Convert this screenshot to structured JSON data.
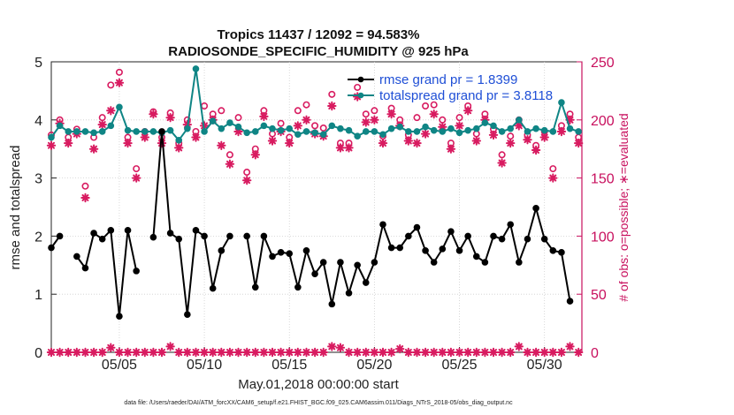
{
  "chart_data": {
    "type": "line",
    "title_line1": "Tropics 11437 / 12092 = 94.583%",
    "title_line2": "RADIOSONDE_SPECIFIC_HUMIDITY @ 925 hPa",
    "xlabel": "May.01,2018 00:00:00 start",
    "ylabel_left": "rmse and totalspread",
    "ylabel_right": "# of obs: o=possible; ∗=evaluated",
    "footer": "data file: /Users/raeder/DAI/ATM_forcXX/CAM6_setup/f.e21.FHIST_BGC.f09_025.CAM6assim.011/Diags_NTrS_2018-05/obs_diag_output.nc",
    "x_range": [
      1,
      32.2
    ],
    "ylim_left": [
      0,
      5
    ],
    "ylim_right": [
      0,
      250
    ],
    "x_ticks": [
      {
        "value": 5,
        "label": "05/05"
      },
      {
        "value": 10,
        "label": "05/10"
      },
      {
        "value": 15,
        "label": "05/15"
      },
      {
        "value": 20,
        "label": "05/20"
      },
      {
        "value": 25,
        "label": "05/25"
      },
      {
        "value": 30,
        "label": "05/30"
      }
    ],
    "y_ticks_left": [
      "0",
      "1",
      "2",
      "3",
      "4",
      "5"
    ],
    "y_ticks_right": [
      "0",
      "50",
      "100",
      "150",
      "200",
      "250"
    ],
    "colors": {
      "rmse": "#000000",
      "totalspread": "#0f8585",
      "obs": "#d81b60",
      "legend_text": "#1f4fd6",
      "right_axis": "#c8105e"
    },
    "legend": [
      {
        "label": "rmse grand pr = 1.8399",
        "series": "rmse"
      },
      {
        "label": "totalspread grand pr = 3.8118",
        "series": "totalspread"
      }
    ],
    "series": [
      {
        "name": "rmse",
        "axis": "left",
        "x": [
          1.0,
          1.5,
          2.0,
          2.5,
          3.0,
          3.5,
          4.0,
          4.5,
          5.0,
          5.5,
          6.0,
          6.5,
          7.0,
          7.5,
          8.0,
          8.5,
          9.0,
          9.5,
          10.0,
          10.5,
          11.0,
          11.5,
          12.0,
          12.5,
          13.0,
          13.5,
          14.0,
          14.5,
          15.0,
          15.5,
          16.0,
          16.5,
          17.0,
          17.5,
          18.0,
          18.5,
          19.0,
          19.5,
          20.0,
          20.5,
          21.0,
          21.5,
          22.0,
          22.5,
          23.0,
          23.5,
          24.0,
          24.5,
          25.0,
          25.5,
          26.0,
          26.5,
          27.0,
          27.5,
          28.0,
          28.5,
          29.0,
          29.5,
          30.0,
          30.5,
          31.0,
          31.5,
          32.0
        ],
        "values": [
          1.8,
          2.0,
          null,
          1.65,
          1.45,
          2.05,
          1.95,
          2.1,
          0.62,
          2.1,
          1.4,
          null,
          1.98,
          3.8,
          2.05,
          1.95,
          0.65,
          2.1,
          2.0,
          1.1,
          1.75,
          2.0,
          null,
          2.0,
          1.12,
          2.0,
          1.65,
          1.72,
          1.7,
          1.12,
          1.75,
          1.35,
          1.55,
          0.83,
          1.55,
          1.02,
          1.5,
          1.2,
          1.55,
          2.2,
          1.8,
          1.8,
          2.0,
          2.15,
          1.75,
          1.55,
          1.78,
          2.08,
          1.75,
          2.0,
          1.65,
          1.55,
          2.0,
          1.95,
          2.2,
          1.55,
          1.95,
          2.48,
          1.95,
          1.75,
          1.72,
          0.88,
          null
        ]
      },
      {
        "name": "totalspread",
        "axis": "left",
        "x": [
          1.0,
          1.5,
          2.0,
          2.5,
          3.0,
          3.5,
          4.0,
          4.5,
          5.0,
          5.5,
          6.0,
          6.5,
          7.0,
          7.5,
          8.0,
          8.5,
          9.0,
          9.5,
          10.0,
          10.5,
          11.0,
          11.5,
          12.0,
          12.5,
          13.0,
          13.5,
          14.0,
          14.5,
          15.0,
          15.5,
          16.0,
          16.5,
          17.0,
          17.5,
          18.0,
          18.5,
          19.0,
          19.5,
          20.0,
          20.5,
          21.0,
          21.5,
          22.0,
          22.5,
          23.0,
          23.5,
          24.0,
          24.5,
          25.0,
          25.5,
          26.0,
          26.5,
          27.0,
          27.5,
          28.0,
          28.5,
          29.0,
          29.5,
          30.0,
          30.5,
          31.0,
          31.5,
          32.0
        ],
        "values": [
          3.7,
          3.9,
          3.8,
          3.8,
          3.8,
          3.78,
          3.8,
          3.9,
          4.22,
          3.82,
          3.8,
          3.8,
          3.8,
          3.78,
          3.82,
          3.65,
          3.85,
          4.88,
          3.8,
          3.98,
          3.85,
          3.95,
          3.88,
          3.78,
          3.8,
          3.9,
          3.85,
          3.82,
          3.85,
          3.75,
          3.8,
          3.78,
          3.75,
          3.9,
          3.85,
          3.82,
          3.72,
          3.8,
          3.8,
          3.75,
          3.85,
          3.88,
          3.8,
          3.8,
          3.88,
          3.82,
          3.8,
          3.85,
          3.78,
          3.82,
          3.85,
          3.95,
          3.9,
          3.8,
          3.85,
          4.0,
          3.8,
          3.85,
          3.82,
          3.8,
          4.3,
          3.85,
          3.8
        ]
      },
      {
        "name": "obs_possible",
        "axis": "right",
        "marker": "circle",
        "x": [
          1.0,
          1.5,
          2.0,
          2.5,
          3.0,
          3.5,
          4.0,
          4.5,
          5.0,
          5.5,
          6.0,
          6.5,
          7.0,
          7.5,
          8.0,
          8.5,
          9.0,
          9.5,
          10.0,
          10.5,
          11.0,
          11.5,
          12.0,
          12.5,
          13.0,
          13.5,
          14.0,
          14.5,
          15.0,
          15.5,
          16.0,
          16.5,
          17.0,
          17.5,
          18.0,
          18.5,
          19.0,
          19.5,
          20.0,
          20.5,
          21.0,
          21.5,
          22.0,
          22.5,
          23.0,
          23.5,
          24.0,
          24.5,
          25.0,
          25.5,
          26.0,
          26.5,
          27.0,
          27.5,
          28.0,
          28.5,
          29.0,
          29.5,
          30.0,
          30.5,
          31.0,
          31.5,
          32.0
        ],
        "values": [
          187,
          200,
          185,
          192,
          143,
          185,
          202,
          230,
          241,
          185,
          158,
          190,
          207,
          185,
          206,
          180,
          200,
          190,
          212,
          205,
          208,
          170,
          202,
          155,
          175,
          208,
          188,
          197,
          185,
          208,
          213,
          195,
          193,
          222,
          180,
          180,
          228,
          205,
          208,
          186,
          210,
          200,
          187,
          202,
          212,
          213,
          200,
          180,
          202,
          212,
          188,
          205,
          192,
          170,
          186,
          200,
          187,
          178,
          190,
          158,
          195,
          205,
          185
        ]
      },
      {
        "name": "obs_evaluated",
        "axis": "right",
        "marker": "star",
        "x": [
          1.0,
          1.5,
          2.0,
          2.5,
          3.0,
          3.5,
          4.0,
          4.5,
          5.0,
          5.5,
          6.0,
          6.5,
          7.0,
          7.5,
          8.0,
          8.5,
          9.0,
          9.5,
          10.0,
          10.5,
          11.0,
          11.5,
          12.0,
          12.5,
          13.0,
          13.5,
          14.0,
          14.5,
          15.0,
          15.5,
          16.0,
          16.5,
          17.0,
          17.5,
          18.0,
          18.5,
          19.0,
          19.5,
          20.0,
          20.5,
          21.0,
          21.5,
          22.0,
          22.5,
          23.0,
          23.5,
          24.0,
          24.5,
          25.0,
          25.5,
          26.0,
          26.5,
          27.0,
          27.5,
          28.0,
          28.5,
          29.0,
          29.5,
          30.0,
          30.5,
          31.0,
          31.5,
          32.0
        ],
        "values": [
          178,
          197,
          180,
          188,
          133,
          175,
          196,
          208,
          232,
          180,
          150,
          185,
          205,
          180,
          202,
          176,
          196,
          185,
          195,
          200,
          178,
          162,
          190,
          148,
          170,
          203,
          182,
          190,
          180,
          195,
          200,
          188,
          186,
          212,
          176,
          176,
          220,
          198,
          200,
          180,
          205,
          195,
          182,
          180,
          188,
          205,
          194,
          175,
          195,
          208,
          182,
          200,
          187,
          163,
          180,
          195,
          183,
          174,
          185,
          150,
          190,
          200,
          180
        ]
      },
      {
        "name": "obs_near_zero",
        "axis": "right",
        "marker": "star",
        "x": [
          1.0,
          1.5,
          2.0,
          2.5,
          3.0,
          3.5,
          4.0,
          4.5,
          5.0,
          5.5,
          6.0,
          6.5,
          7.0,
          7.5,
          8.0,
          8.5,
          9.0,
          9.5,
          10.0,
          10.5,
          11.0,
          11.5,
          12.0,
          12.5,
          13.0,
          13.5,
          14.0,
          14.5,
          15.0,
          15.5,
          16.0,
          16.5,
          17.0,
          17.5,
          18.0,
          18.5,
          19.0,
          19.5,
          20.0,
          20.5,
          21.0,
          21.5,
          22.0,
          22.5,
          23.0,
          23.5,
          24.0,
          24.5,
          25.0,
          25.5,
          26.0,
          26.5,
          27.0,
          27.5,
          28.0,
          28.5,
          29.0,
          29.5,
          30.0,
          30.5,
          31.0,
          31.5,
          32.0
        ],
        "values": [
          0,
          0,
          0,
          0,
          0,
          0,
          0,
          4,
          0,
          0,
          0,
          0,
          0,
          0,
          5,
          0,
          0,
          0,
          0,
          0,
          0,
          0,
          0,
          0,
          0,
          0,
          0,
          0,
          0,
          0,
          0,
          0,
          0,
          5,
          4,
          0,
          0,
          0,
          0,
          0,
          0,
          3,
          0,
          0,
          0,
          0,
          0,
          0,
          0,
          0,
          0,
          0,
          0,
          0,
          0,
          5,
          0,
          0,
          0,
          0,
          0,
          5,
          0
        ]
      }
    ]
  }
}
